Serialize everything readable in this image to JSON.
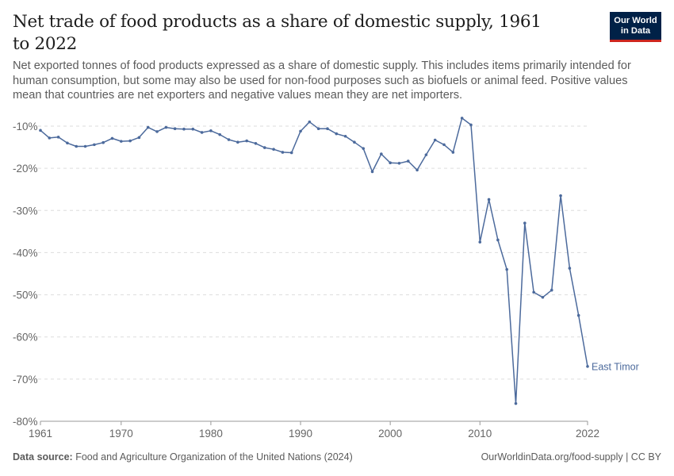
{
  "header": {
    "title": "Net trade of food products as a share of domestic supply, 1961 to 2022",
    "subtitle": "Net exported tonnes of food products expressed as a share of domestic supply. This includes items primarily intended for human consumption, but some may also be used for non-food purposes such as biofuels or animal feed. Positive values mean that countries are net exporters and negative values mean they are net importers.",
    "logo_line1": "Our World",
    "logo_line2": "in Data"
  },
  "footer": {
    "source_label": "Data source:",
    "source_text": "Food and Agriculture Organization of the United Nations (2024)",
    "credit": "OurWorldinData.org/food-supply | CC BY"
  },
  "colors": {
    "series": "#4c6a9c",
    "grid": "#dddddd",
    "axis": "#999999",
    "brand": "#002147",
    "brand_accent": "#ce261e"
  },
  "chart_data": {
    "type": "line",
    "title": "Net trade of food products as a share of domestic supply, 1961 to 2022",
    "xlabel": "",
    "ylabel": "",
    "xlim": [
      1961,
      2022
    ],
    "ylim": [
      -80,
      -10
    ],
    "y_ticks": [
      -10,
      -20,
      -30,
      -40,
      -50,
      -60,
      -70,
      -80
    ],
    "y_tick_labels": [
      "-10%",
      "-20%",
      "-30%",
      "-40%",
      "-50%",
      "-60%",
      "-70%",
      "-80%"
    ],
    "x_ticks": [
      1961,
      1970,
      1980,
      1990,
      2000,
      2010,
      2022
    ],
    "x_tick_labels": [
      "1961",
      "1970",
      "1980",
      "1990",
      "2000",
      "2010",
      "2022"
    ],
    "grid": true,
    "series": [
      {
        "name": "East Timor",
        "x": [
          1961,
          1962,
          1963,
          1964,
          1965,
          1966,
          1967,
          1968,
          1969,
          1970,
          1971,
          1972,
          1973,
          1974,
          1975,
          1976,
          1977,
          1978,
          1979,
          1980,
          1981,
          1982,
          1983,
          1984,
          1985,
          1986,
          1987,
          1988,
          1989,
          1990,
          1991,
          1992,
          1993,
          1994,
          1995,
          1996,
          1997,
          1998,
          1999,
          2000,
          2001,
          2002,
          2003,
          2004,
          2005,
          2006,
          2007,
          2008,
          2009,
          2010,
          2011,
          2012,
          2013,
          2014,
          2015,
          2016,
          2017,
          2018,
          2019,
          2020,
          2021,
          2022
        ],
        "values": [
          -11.0,
          -12.8,
          -12.6,
          -14.0,
          -14.8,
          -14.8,
          -14.4,
          -13.9,
          -12.9,
          -13.6,
          -13.5,
          -12.7,
          -10.3,
          -11.3,
          -10.3,
          -10.6,
          -10.7,
          -10.7,
          -11.5,
          -11.1,
          -12.0,
          -13.2,
          -13.8,
          -13.5,
          -14.1,
          -15.1,
          -15.5,
          -16.2,
          -16.3,
          -11.2,
          -9.0,
          -10.6,
          -10.6,
          -11.8,
          -12.4,
          -13.8,
          -15.3,
          -20.8,
          -16.6,
          -18.7,
          -18.8,
          -18.3,
          -20.4,
          -16.8,
          -13.3,
          -14.4,
          -16.2,
          -8.1,
          -9.7,
          -37.5,
          -27.4,
          -37.0,
          -44.0,
          -75.8,
          -33.0,
          -49.4,
          -50.6,
          -48.9,
          -26.5,
          -43.7,
          -54.9,
          -67.0
        ]
      }
    ]
  }
}
